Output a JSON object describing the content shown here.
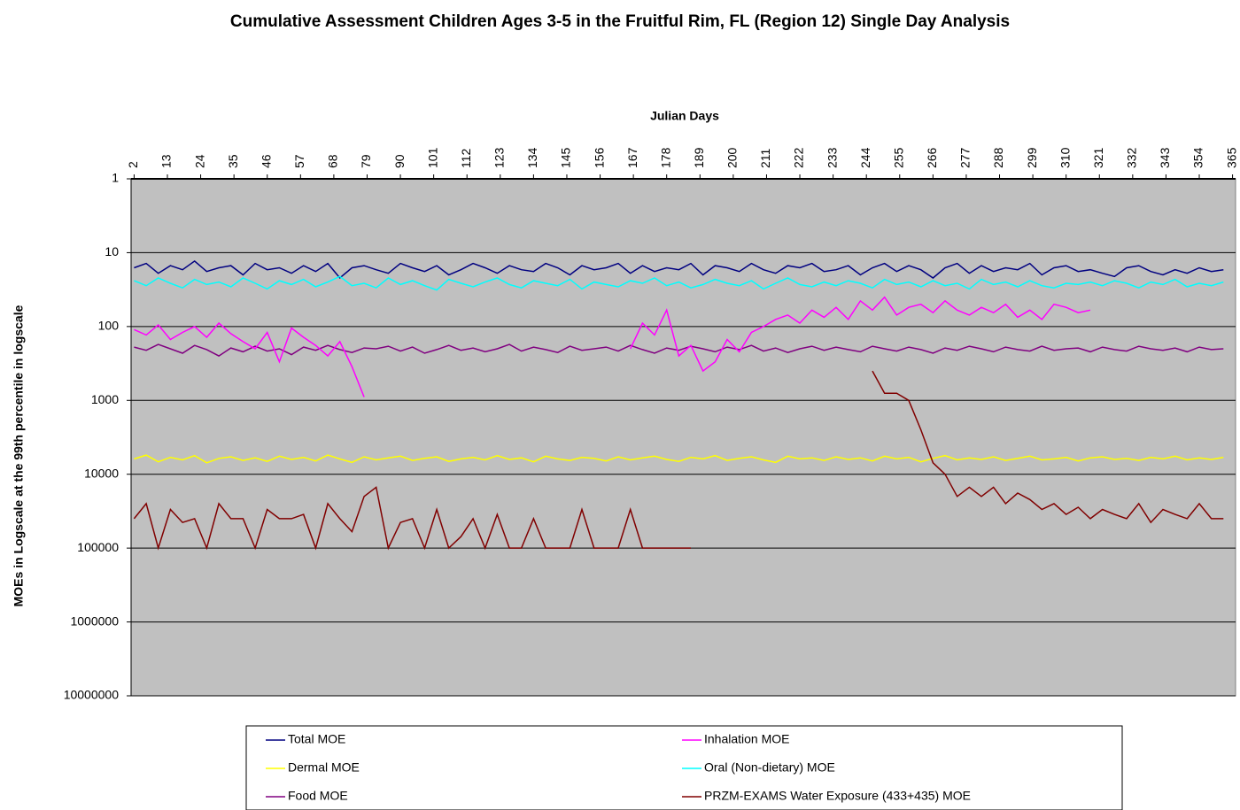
{
  "chart_data": {
    "type": "line",
    "title": "Cumulative Assessment Children Ages 3-5 in the Fruitful Rim, FL (Region 12) Single Day Analysis",
    "x_label": "Julian Days",
    "y_label": "MOEs in Logscale at the 99th percentile in logscale",
    "xlim": [
      1,
      366
    ],
    "xticks": [
      2,
      13,
      24,
      35,
      46,
      57,
      68,
      79,
      90,
      101,
      112,
      123,
      134,
      145,
      156,
      167,
      178,
      189,
      200,
      211,
      222,
      233,
      244,
      255,
      266,
      277,
      288,
      299,
      310,
      321,
      332,
      343,
      354,
      365
    ],
    "ylim": [
      1,
      10000000
    ],
    "yticks": [
      1,
      10,
      100,
      1000,
      10000,
      100000,
      1000000,
      10000000
    ],
    "y_log": true,
    "y_reversed": true,
    "grid": true,
    "legend": "bottom",
    "x": [
      2,
      6,
      10,
      14,
      18,
      22,
      26,
      30,
      34,
      38,
      42,
      46,
      50,
      54,
      58,
      62,
      66,
      70,
      74,
      78,
      82,
      86,
      90,
      94,
      98,
      102,
      106,
      110,
      114,
      118,
      122,
      126,
      130,
      134,
      138,
      142,
      146,
      150,
      154,
      158,
      162,
      166,
      170,
      174,
      178,
      182,
      186,
      190,
      194,
      198,
      202,
      206,
      210,
      214,
      218,
      222,
      226,
      230,
      234,
      238,
      242,
      246,
      250,
      254,
      258,
      262,
      266,
      270,
      274,
      278,
      282,
      286,
      290,
      294,
      298,
      302,
      306,
      310,
      314,
      318,
      322,
      326,
      330,
      334,
      338,
      342,
      346,
      350,
      354,
      358,
      362
    ],
    "series": [
      {
        "name": "Total MOE",
        "color": "#000080",
        "values": [
          16,
          14,
          19,
          15,
          17,
          13,
          18,
          16,
          15,
          20,
          14,
          17,
          16,
          19,
          15,
          18,
          14,
          22,
          16,
          15,
          17,
          19,
          14,
          16,
          18,
          15,
          20,
          17,
          14,
          16,
          19,
          15,
          17,
          18,
          14,
          16,
          20,
          15,
          17,
          16,
          14,
          19,
          15,
          18,
          16,
          17,
          14,
          20,
          15,
          16,
          18,
          14,
          17,
          19,
          15,
          16,
          14,
          18,
          17,
          15,
          20,
          16,
          14,
          18,
          15,
          17,
          22,
          16,
          14,
          19,
          15,
          18,
          16,
          17,
          14,
          20,
          16,
          15,
          18,
          17,
          19,
          21,
          16,
          15,
          18,
          20,
          17,
          19,
          16,
          18,
          17
        ]
      },
      {
        "name": "Dermal MOE",
        "color": "#ffff00",
        "values": [
          6200,
          5500,
          6800,
          5900,
          6400,
          5600,
          7000,
          6100,
          5800,
          6500,
          6000,
          6700,
          5700,
          6300,
          5900,
          6600,
          5500,
          6200,
          6900,
          5800,
          6400,
          6000,
          5700,
          6500,
          6100,
          5800,
          6700,
          6200,
          5900,
          6400,
          5600,
          6300,
          6000,
          6800,
          5700,
          6200,
          6500,
          5900,
          6100,
          6600,
          5800,
          6400,
          6000,
          5700,
          6300,
          6700,
          5900,
          6200,
          5600,
          6500,
          6100,
          5800,
          6400,
          6900,
          5700,
          6200,
          6000,
          6500,
          5800,
          6300,
          6000,
          6600,
          5700,
          6200,
          5900,
          6800,
          6100,
          5600,
          6400,
          6000,
          6300,
          5800,
          6500,
          6100,
          5700,
          6400,
          6200,
          5900,
          6600,
          6000,
          5800,
          6300,
          6100,
          6500,
          5900,
          6200,
          5700,
          6400,
          6000,
          6300,
          5900
        ]
      },
      {
        "name": "Food MOE",
        "color": "#800080",
        "values": [
          190,
          210,
          175,
          200,
          230,
          180,
          205,
          250,
          195,
          220,
          185,
          215,
          200,
          240,
          190,
          210,
          180,
          205,
          225,
          195,
          200,
          185,
          215,
          190,
          230,
          205,
          180,
          210,
          195,
          220,
          200,
          175,
          215,
          190,
          205,
          225,
          185,
          210,
          200,
          190,
          215,
          180,
          205,
          230,
          195,
          210,
          185,
          200,
          220,
          190,
          205,
          180,
          215,
          195,
          225,
          200,
          185,
          210,
          190,
          205,
          220,
          185,
          200,
          215,
          190,
          205,
          230,
          195,
          210,
          185,
          200,
          220,
          190,
          205,
          215,
          185,
          210,
          200,
          195,
          220,
          190,
          205,
          215,
          185,
          200,
          210,
          195,
          220,
          190,
          205,
          200
        ]
      },
      {
        "name": "Inhalation MOE",
        "color": "#ff00ff",
        "values": [
          110,
          130,
          95,
          150,
          120,
          100,
          140,
          90,
          125,
          160,
          200,
          120,
          300,
          105,
          140,
          180,
          250,
          160,
          350,
          900,
          null,
          null,
          null,
          null,
          null,
          null,
          null,
          null,
          null,
          null,
          null,
          null,
          null,
          null,
          null,
          null,
          null,
          null,
          null,
          null,
          null,
          200,
          90,
          130,
          60,
          250,
          180,
          400,
          300,
          150,
          220,
          120,
          100,
          80,
          70,
          90,
          60,
          75,
          55,
          80,
          45,
          60,
          40,
          70,
          55,
          50,
          65,
          45,
          60,
          70,
          55,
          65,
          50,
          75,
          60,
          80,
          50,
          55,
          65,
          60,
          null,
          null,
          null,
          null,
          null,
          null,
          null,
          null,
          null,
          null,
          null
        ]
      },
      {
        "name": "Oral (Non-dietary) MOE",
        "color": "#00ffff",
        "values": [
          24,
          28,
          22,
          26,
          30,
          23,
          27,
          25,
          29,
          22,
          26,
          31,
          24,
          27,
          23,
          29,
          25,
          21,
          28,
          26,
          30,
          22,
          27,
          24,
          28,
          32,
          23,
          26,
          29,
          25,
          22,
          27,
          30,
          24,
          26,
          28,
          23,
          31,
          25,
          27,
          29,
          24,
          26,
          22,
          28,
          25,
          30,
          27,
          23,
          26,
          28,
          24,
          31,
          26,
          22,
          27,
          29,
          25,
          28,
          24,
          26,
          30,
          23,
          27,
          25,
          29,
          24,
          28,
          26,
          31,
          23,
          27,
          25,
          29,
          24,
          28,
          30,
          26,
          27,
          25,
          28,
          24,
          26,
          30,
          25,
          27,
          23,
          29,
          26,
          28,
          25
        ]
      },
      {
        "name": "PRZM-EXAMS Water Exposure (433+435) MOE",
        "color": "#800000",
        "values": [
          40000,
          25000,
          100000,
          30000,
          45000,
          40000,
          100000,
          25000,
          40000,
          40000,
          100000,
          30000,
          40000,
          40000,
          35000,
          100000,
          25000,
          40000,
          60000,
          20000,
          15000,
          100000,
          45000,
          40000,
          100000,
          30000,
          100000,
          70000,
          40000,
          100000,
          35000,
          100000,
          100000,
          40000,
          100000,
          100000,
          100000,
          30000,
          100000,
          100000,
          100000,
          30000,
          100000,
          100000,
          100000,
          100000,
          100000,
          null,
          100000,
          null,
          null,
          null,
          null,
          null,
          null,
          null,
          null,
          null,
          null,
          null,
          null,
          400,
          800,
          800,
          1000,
          2500,
          7000,
          10000,
          20000,
          15000,
          20000,
          15000,
          25000,
          18000,
          22000,
          30000,
          25000,
          35000,
          28000,
          40000,
          30000,
          35000,
          40000,
          25000,
          45000,
          30000,
          35000,
          40000,
          25000,
          40000,
          40000
        ]
      }
    ]
  }
}
